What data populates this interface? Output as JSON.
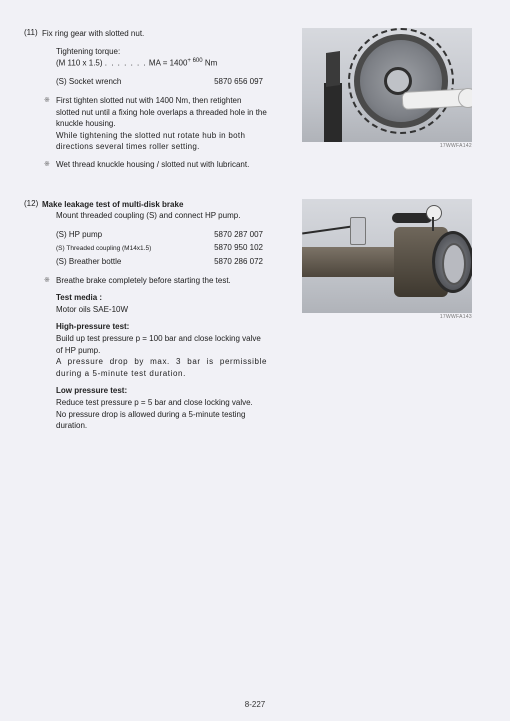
{
  "page_number": "8-227",
  "section11": {
    "num": "(11)",
    "title": "Fix ring gear with slotted nut.",
    "torque_label": "Tightening torque:",
    "torque_line_prefix": "(M 110 x 1.5)",
    "torque_dots": ". . . . . . .",
    "torque_ma": "MA = 1400",
    "torque_sup": "+ 600",
    "torque_unit": "Nm",
    "socket_label": "(S) Socket wrench",
    "socket_value": "5870 656 097",
    "bullet1": "First tighten slotted nut with 1400 Nm, then retighten slotted nut until a fixing hole overlaps a threaded hole in the knuckle housing.",
    "bullet1b": "While tightening the slotted nut rotate hub in both directions several times roller setting.",
    "bullet2": "Wet thread knuckle housing / slotted nut with lubricant.",
    "fig_caption": "17WWFA142"
  },
  "section12": {
    "num": "(12)",
    "title": "Make leakage test of multi-disk brake",
    "intro": "Mount threaded coupling (S) and connect HP pump.",
    "hp_label": "(S) HP pump",
    "hp_value": "5870 287 007",
    "tc_label": "(S) Threaded coupling (M14x1.5)",
    "tc_value": "5870 950 102",
    "bb_label": "(S) Breather bottle",
    "bb_value": "5870 286 072",
    "bullet_breathe": "Breathe brake completely before starting the test.",
    "media_title": "Test media :",
    "media_value": "Motor oils SAE-10W",
    "hp_test_title": "High-pressure test:",
    "hp_test_l1": "Build up test pressure p = 100 bar and close locking valve of HP pump.",
    "hp_test_l2": "A pressure drop by max. 3 bar is permissible during a 5-minute test duration.",
    "lp_test_title": "Low pressure test:",
    "lp_test_l1": "Reduce test pressure p = 5 bar and close locking valve.",
    "lp_test_l2": "No pressure drop is allowed during a 5-minute testing duration.",
    "fig_caption": "17WWFA143"
  }
}
